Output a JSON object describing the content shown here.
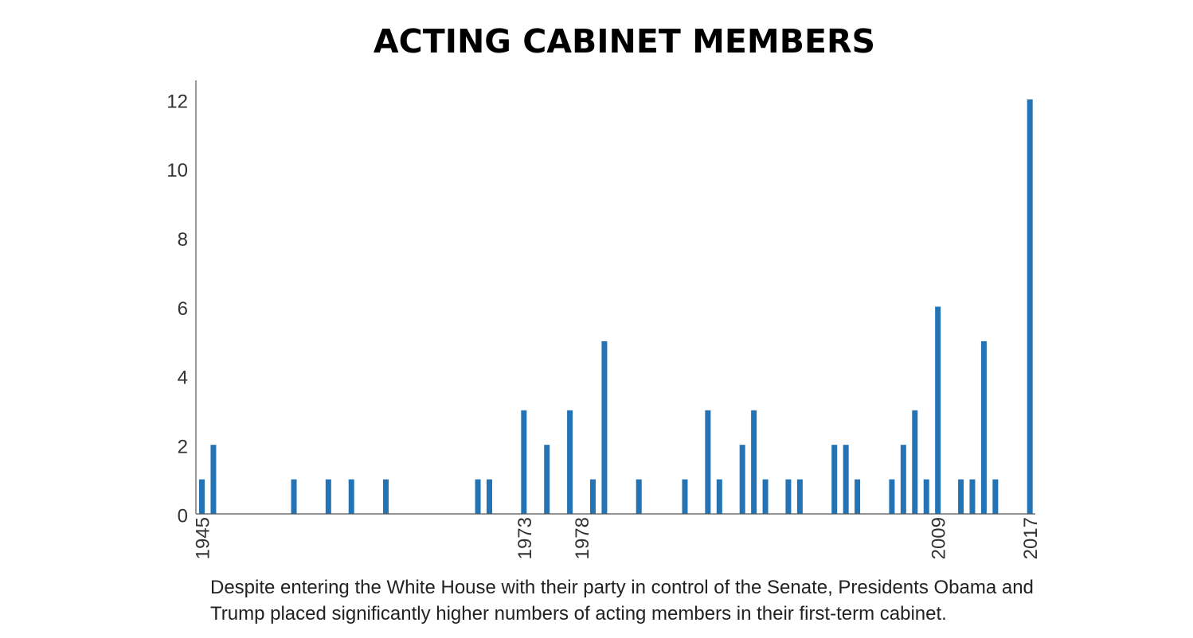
{
  "chart_data": {
    "type": "bar",
    "title": "ACTING CABINET MEMBERS",
    "caption": "Despite entering the White House with their party in control of the Senate, Presidents  Obama and Trump placed significantly higher numbers of acting members in their first-term cabinet.",
    "xlabel": "",
    "ylabel": "",
    "x_range": [
      1945,
      2017
    ],
    "x_tick_labels": [
      1945,
      1973,
      1978,
      2009,
      2017
    ],
    "ylim": [
      0,
      12
    ],
    "y_ticks": [
      0,
      2,
      4,
      6,
      8,
      10,
      12
    ],
    "grid": false,
    "bar_color": "#2474B5",
    "bars": [
      {
        "x": 1945,
        "value": 1
      },
      {
        "x": 1946,
        "value": 2
      },
      {
        "x": 1953,
        "value": 1
      },
      {
        "x": 1956,
        "value": 1
      },
      {
        "x": 1958,
        "value": 1
      },
      {
        "x": 1961,
        "value": 1
      },
      {
        "x": 1969,
        "value": 1
      },
      {
        "x": 1970,
        "value": 1
      },
      {
        "x": 1973,
        "value": 3
      },
      {
        "x": 1975,
        "value": 2
      },
      {
        "x": 1977,
        "value": 3
      },
      {
        "x": 1979,
        "value": 1
      },
      {
        "x": 1980,
        "value": 5
      },
      {
        "x": 1983,
        "value": 1
      },
      {
        "x": 1987,
        "value": 1
      },
      {
        "x": 1989,
        "value": 3
      },
      {
        "x": 1990,
        "value": 1
      },
      {
        "x": 1992,
        "value": 2
      },
      {
        "x": 1993,
        "value": 3
      },
      {
        "x": 1994,
        "value": 1
      },
      {
        "x": 1996,
        "value": 1
      },
      {
        "x": 1997,
        "value": 1
      },
      {
        "x": 2000,
        "value": 2
      },
      {
        "x": 2001,
        "value": 2
      },
      {
        "x": 2002,
        "value": 1
      },
      {
        "x": 2005,
        "value": 1
      },
      {
        "x": 2006,
        "value": 2
      },
      {
        "x": 2007,
        "value": 3
      },
      {
        "x": 2008,
        "value": 1
      },
      {
        "x": 2009,
        "value": 6
      },
      {
        "x": 2011,
        "value": 1
      },
      {
        "x": 2012,
        "value": 1
      },
      {
        "x": 2013,
        "value": 5
      },
      {
        "x": 2014,
        "value": 1
      },
      {
        "x": 2017,
        "value": 12
      }
    ]
  }
}
